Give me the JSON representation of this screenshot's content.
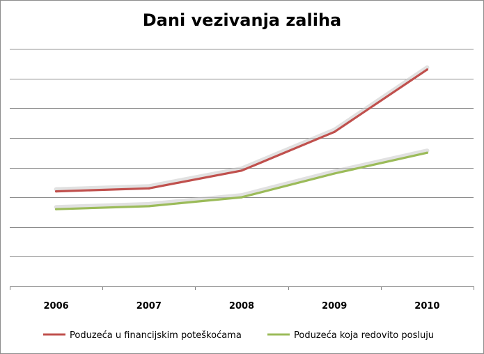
{
  "chart_data": {
    "type": "line",
    "title": "Dani vezivanja zaliha",
    "categories": [
      "2006",
      "2007",
      "2008",
      "2009",
      "2010"
    ],
    "series": [
      {
        "name": "Poduzeća u financijskim poteškoćama",
        "color": "#c0504d",
        "values": [
          32,
          33,
          39,
          52,
          73
        ]
      },
      {
        "name": "Poduzeća koja redovito posluju",
        "color": "#9bbb59",
        "values": [
          26,
          27,
          30,
          38,
          45
        ]
      }
    ],
    "ylim": [
      0,
      80
    ],
    "y_gridlines": 8,
    "grid": true,
    "legend_position": "bottom",
    "xlabel": "",
    "ylabel": ""
  }
}
